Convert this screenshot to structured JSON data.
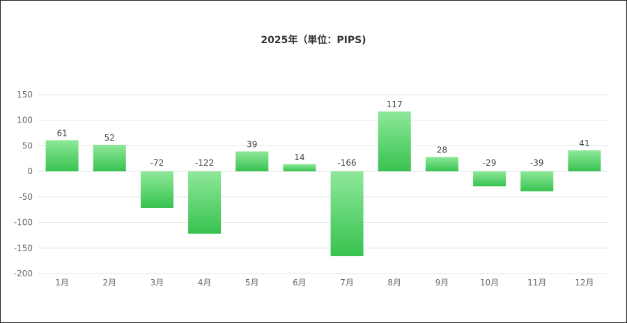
{
  "chart_data": {
    "type": "bar",
    "title": "2025年（単位：PIPS)",
    "categories": [
      "1月",
      "2月",
      "3月",
      "4月",
      "5月",
      "6月",
      "7月",
      "8月",
      "9月",
      "10月",
      "11月",
      "12月"
    ],
    "values": [
      61,
      52,
      -72,
      -122,
      39,
      14,
      -166,
      117,
      28,
      -29,
      -39,
      41
    ],
    "data_labels": [
      "61",
      "52",
      "-72",
      "-122",
      "39",
      "14",
      "-166",
      "117",
      "28",
      "-29",
      "-39",
      "41"
    ],
    "yticks": [
      "150",
      "100",
      "50",
      "0",
      "-50",
      "-100",
      "-150",
      "-200"
    ],
    "ylim": [
      -200,
      150
    ],
    "grid": true,
    "legend": "none",
    "colors": {
      "bar_top": "#8ee89a",
      "bar_bottom": "#37c24f",
      "grid": "#e6e6e6",
      "axis_text": "#666666"
    }
  }
}
